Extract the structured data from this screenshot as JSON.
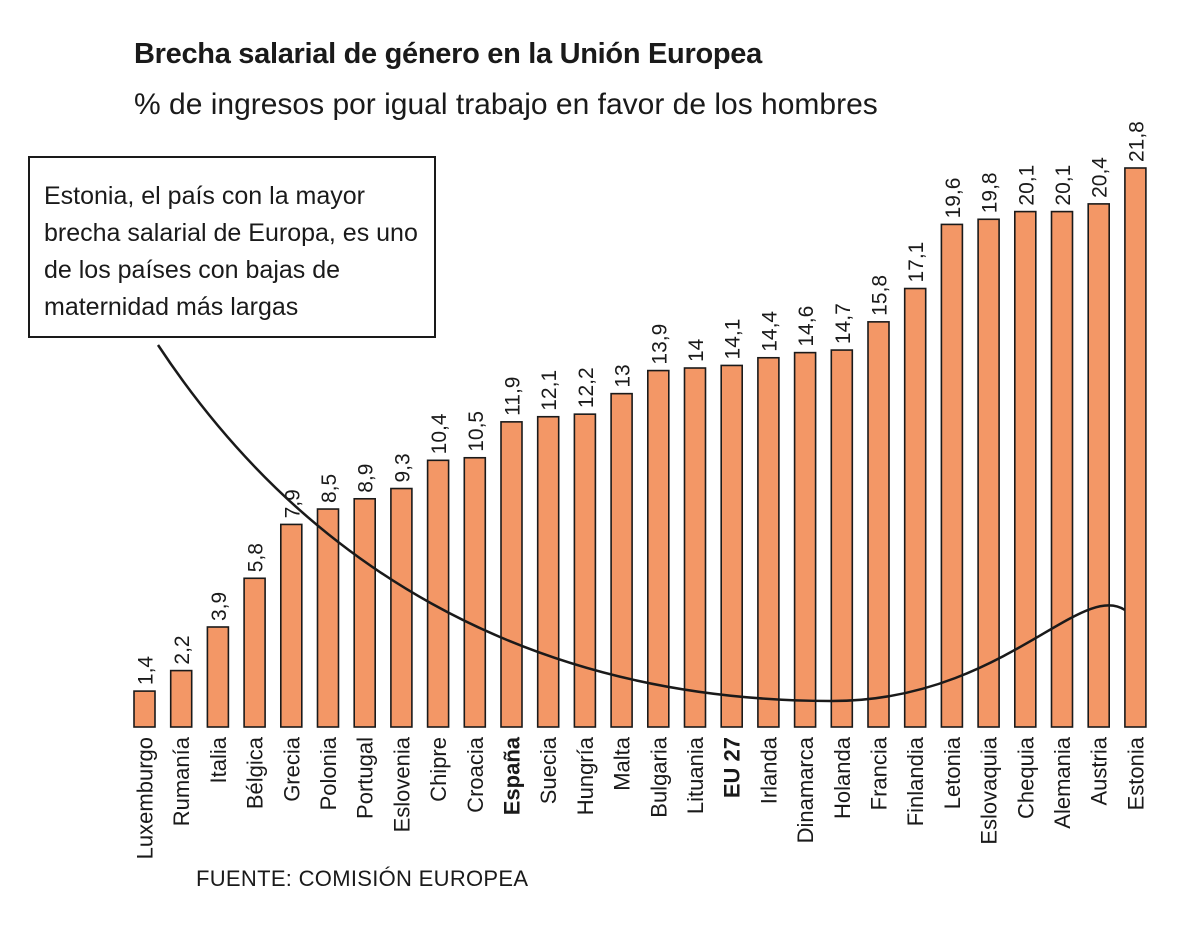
{
  "title": "Brecha salarial de género en la Unión Europea",
  "subtitle": "% de ingresos por igual trabajo en favor de los hombres",
  "annotation": "Estonia, el país con la mayor brecha salarial de Europa, es uno de los países con bajas de maternidad más largas",
  "source": "FUENTE: COMISIÓN EUROPEA",
  "colors": {
    "bar": "#f39766",
    "stroke": "#1a1a1a",
    "text": "#1a1a1a"
  },
  "chart_data": {
    "type": "bar",
    "categories": [
      "Luxemburgo",
      "Rumanía",
      "Italia",
      "Bélgica",
      "Grecia",
      "Polonia",
      "Portugal",
      "Eslovenia",
      "Chipre",
      "Croacia",
      "España",
      "Suecia",
      "Hungría",
      "Malta",
      "Bulgaria",
      "Lituania",
      "EU 27",
      "Irlanda",
      "Dinamarca",
      "Holanda",
      "Francia",
      "Finlandia",
      "Letonia",
      "Eslovaquia",
      "Chequia",
      "Alemania",
      "Austria",
      "Estonia"
    ],
    "values": [
      1.4,
      2.2,
      3.9,
      5.8,
      7.9,
      8.5,
      8.9,
      9.3,
      10.4,
      10.5,
      11.9,
      12.1,
      12.2,
      13,
      13.9,
      14,
      14.1,
      14.4,
      14.6,
      14.7,
      15.8,
      17.1,
      19.6,
      19.8,
      20.1,
      20.1,
      20.4,
      21.8
    ],
    "value_labels": [
      "1,4",
      "2,2",
      "3,9",
      "5,8",
      "7,9",
      "8,5",
      "8,9",
      "9,3",
      "10,4",
      "10,5",
      "11,9",
      "12,1",
      "12,2",
      "13",
      "13,9",
      "14",
      "14,1",
      "14,4",
      "14,6",
      "14,7",
      "15,8",
      "17,1",
      "19,6",
      "19,8",
      "20,1",
      "20,1",
      "20,4",
      "21,8"
    ],
    "highlighted": [
      "España",
      "EU 27"
    ],
    "ylim": [
      0,
      21.8
    ],
    "grid": false,
    "legend": "none"
  }
}
